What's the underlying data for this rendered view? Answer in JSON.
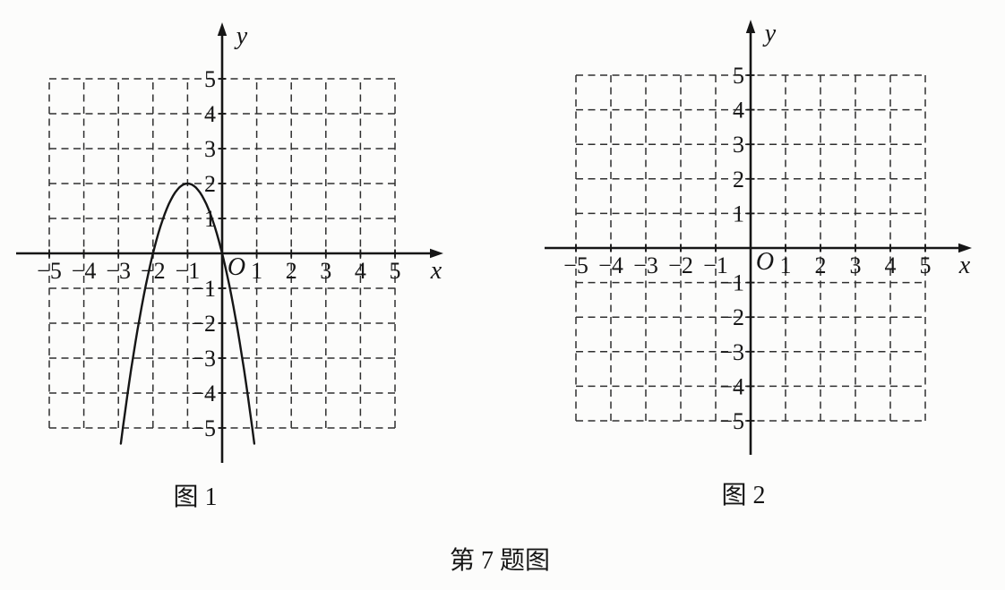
{
  "page": {
    "background": "#fcfcfb",
    "ink_color": "#161616"
  },
  "captions": {
    "figure1": "图 1",
    "figure2": "图 2",
    "problem": "第 7 题图"
  },
  "figures": [
    {
      "id": "fig1",
      "title": "图 1",
      "x_axis_label": "x",
      "y_axis_label": "y",
      "origin_label": "O",
      "xlim": [
        -5,
        5
      ],
      "ylim": [
        -5,
        5
      ],
      "x_ticks": [
        -5,
        -4,
        -3,
        -2,
        -1,
        1,
        2,
        3,
        4,
        5
      ],
      "y_ticks": [
        -5,
        -4,
        -3,
        -2,
        -1,
        1,
        2,
        3,
        4,
        5
      ],
      "grid": "dashed 1x1",
      "curve": {
        "present": true,
        "type": "parabola",
        "equation": "y = -2(x+1)^2 + 2",
        "a": -2,
        "h": -1,
        "k": 2,
        "vertex": [
          -1,
          2
        ],
        "x_intercepts": [
          [
            -2,
            0
          ],
          [
            0,
            0
          ]
        ],
        "y_intercept": [
          0,
          0
        ],
        "x_draw_range": [
          -2.93,
          0.93
        ]
      }
    },
    {
      "id": "fig2",
      "title": "图 2",
      "x_axis_label": "x",
      "y_axis_label": "y",
      "origin_label": "O",
      "xlim": [
        -5,
        5
      ],
      "ylim": [
        -5,
        5
      ],
      "x_ticks": [
        -5,
        -4,
        -3,
        -2,
        -1,
        1,
        2,
        3,
        4,
        5
      ],
      "y_ticks": [
        -5,
        -4,
        -3,
        -2,
        -1,
        1,
        2,
        3,
        4,
        5
      ],
      "grid": "dashed 1x1",
      "curve": {
        "present": false
      }
    }
  ],
  "chart_data": [
    {
      "type": "line",
      "title": "图 1",
      "xlabel": "x",
      "ylabel": "y",
      "xlim": [
        -5,
        5
      ],
      "ylim": [
        -5,
        5
      ],
      "x_ticks": [
        -5,
        -4,
        -3,
        -2,
        -1,
        1,
        2,
        3,
        4,
        5
      ],
      "y_ticks": [
        -5,
        -4,
        -3,
        -2,
        -1,
        1,
        2,
        3,
        4,
        5
      ],
      "grid": "dashed unit grid",
      "legend": "none",
      "series": [
        {
          "name": "downward parabola",
          "equation": "y = -2(x+1)^2 + 2",
          "vertex": [
            -1,
            2
          ],
          "x_intercepts": [
            [
              -2,
              0
            ],
            [
              0,
              0
            ]
          ],
          "y_intercept": [
            0,
            0
          ],
          "points": [
            [
              -2.9,
              -5.22
            ],
            [
              -2.5,
              -2.5
            ],
            [
              -2,
              0
            ],
            [
              -1.5,
              1.5
            ],
            [
              -1,
              2
            ],
            [
              -0.5,
              1.5
            ],
            [
              0,
              0
            ],
            [
              0.5,
              -2.5
            ],
            [
              0.9,
              -5.22
            ]
          ]
        }
      ]
    },
    {
      "type": "line",
      "title": "图 2",
      "xlabel": "x",
      "ylabel": "y",
      "xlim": [
        -5,
        5
      ],
      "ylim": [
        -5,
        5
      ],
      "x_ticks": [
        -5,
        -4,
        -3,
        -2,
        -1,
        1,
        2,
        3,
        4,
        5
      ],
      "y_ticks": [
        -5,
        -4,
        -3,
        -2,
        -1,
        1,
        2,
        3,
        4,
        5
      ],
      "grid": "dashed unit grid",
      "legend": "none",
      "series": []
    }
  ]
}
